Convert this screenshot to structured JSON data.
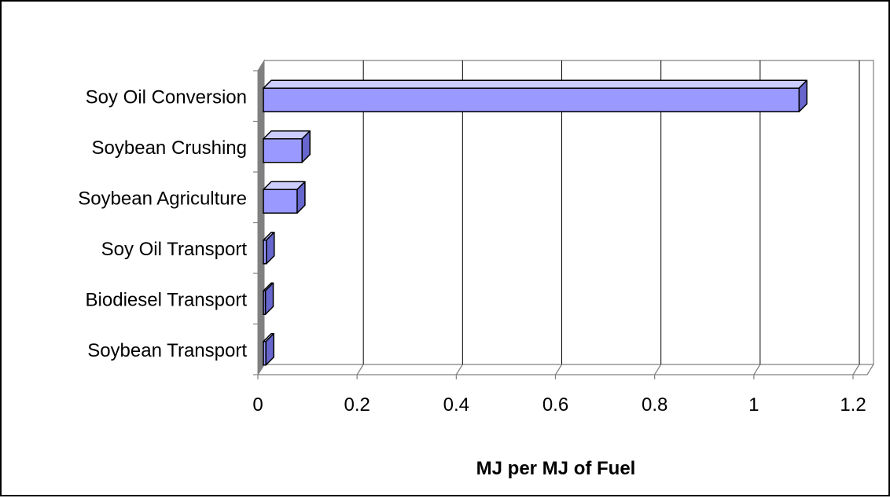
{
  "chart_data": {
    "type": "bar",
    "orientation": "horizontal",
    "three_d": true,
    "categories": [
      "Soy Oil Conversion",
      "Soybean Crushing",
      "Soybean Agriculture",
      "Soy Oil Transport",
      "Biodiesel Transport",
      "Soybean Transport"
    ],
    "values": [
      1.08,
      0.078,
      0.068,
      0.006,
      0.004,
      0.005
    ],
    "xlabel": "MJ per MJ of Fuel",
    "ylabel": "",
    "title": "",
    "xlim": [
      0,
      1.2
    ],
    "xticks": [
      "0",
      "0.2",
      "0.4",
      "0.6",
      "0.8",
      "1",
      "1.2"
    ],
    "grid": "vertical",
    "legend": "none",
    "colors": {
      "bar_face": "#9999ff",
      "bar_top": "#ccccff",
      "bar_side": "#6666cc",
      "bar_edge": "#000000",
      "left_wall": "#808080",
      "gridline": "#000000",
      "axis": "#808080"
    }
  }
}
